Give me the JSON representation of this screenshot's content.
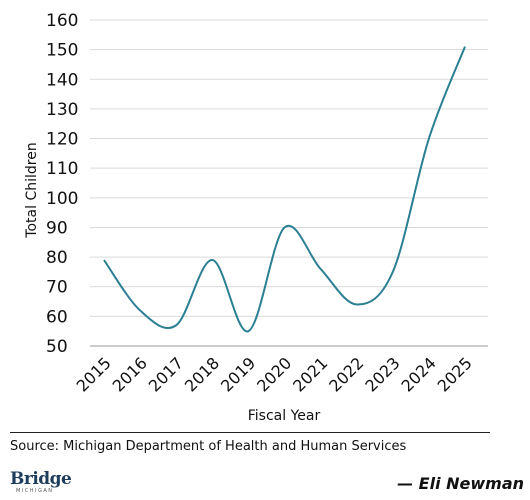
{
  "chart_data": {
    "type": "line",
    "title": "",
    "xlabel": "Fiscal Year",
    "ylabel": "Total Children",
    "x": [
      "2015",
      "2016",
      "2017",
      "2018",
      "2019",
      "2020",
      "2021",
      "2022",
      "2023",
      "2024",
      "2025"
    ],
    "series": [
      {
        "values": [
          79,
          62,
          57,
          79,
          55,
          90,
          76,
          64,
          75,
          120,
          151
        ]
      }
    ],
    "ylim": [
      50,
      160
    ],
    "yticks": [
      50,
      60,
      70,
      80,
      90,
      100,
      110,
      120,
      130,
      140,
      150,
      160
    ],
    "grid": true,
    "line_color": "#2b7f92"
  },
  "source": "Source: Michigan Department of Health and Human Services",
  "logo": {
    "name": "Bridge",
    "sub": "MICHIGAN"
  },
  "credit": "— Eli Newman"
}
